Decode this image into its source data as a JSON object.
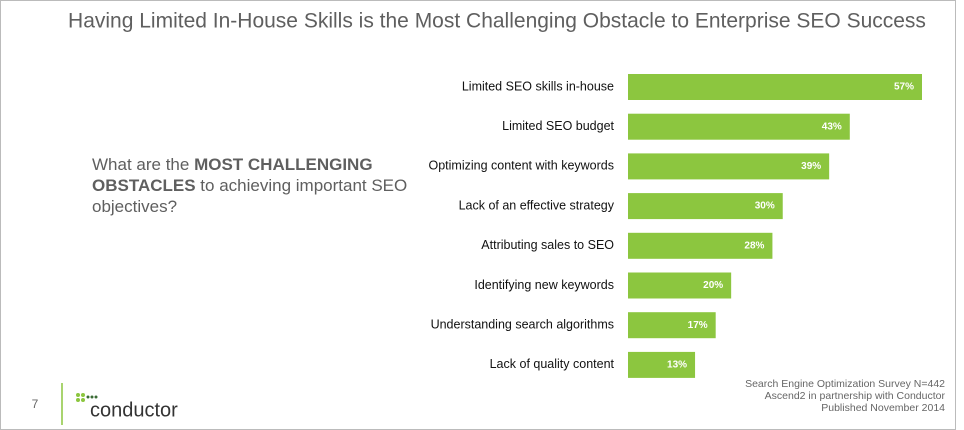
{
  "chart_data": {
    "type": "bar",
    "orientation": "horizontal",
    "title": "Having Limited In-House Skills is the Most Challenging Obstacle to Enterprise SEO Success",
    "categories": [
      "Limited SEO skills in-house",
      "Limited SEO budget",
      "Optimizing content with keywords",
      "Lack of an effective strategy",
      "Attributing sales to SEO",
      "Identifying new keywords",
      "Understanding search algorithms",
      "Lack of quality content"
    ],
    "values": [
      57,
      43,
      39,
      30,
      28,
      20,
      17,
      13
    ],
    "value_labels": [
      "57%",
      "43%",
      "39%",
      "30%",
      "28%",
      "20%",
      "17%",
      "13%"
    ],
    "color": "#8cc63f"
  },
  "question": [
    [
      {
        "text": "What are the "
      },
      {
        "text": "MOST CHALLENGING",
        "bold": true
      }
    ],
    [
      {
        "text": "OBSTACLES",
        "bold": true
      },
      {
        "text": " to achieving important SEO"
      }
    ],
    [
      {
        "text": "objectives?"
      }
    ]
  ],
  "page_number": "7",
  "logo": "conductor",
  "source": [
    "Search Engine Optimization Survey N=442",
    "Ascend2 in partnership with Conductor",
    "Published November 2014"
  ]
}
